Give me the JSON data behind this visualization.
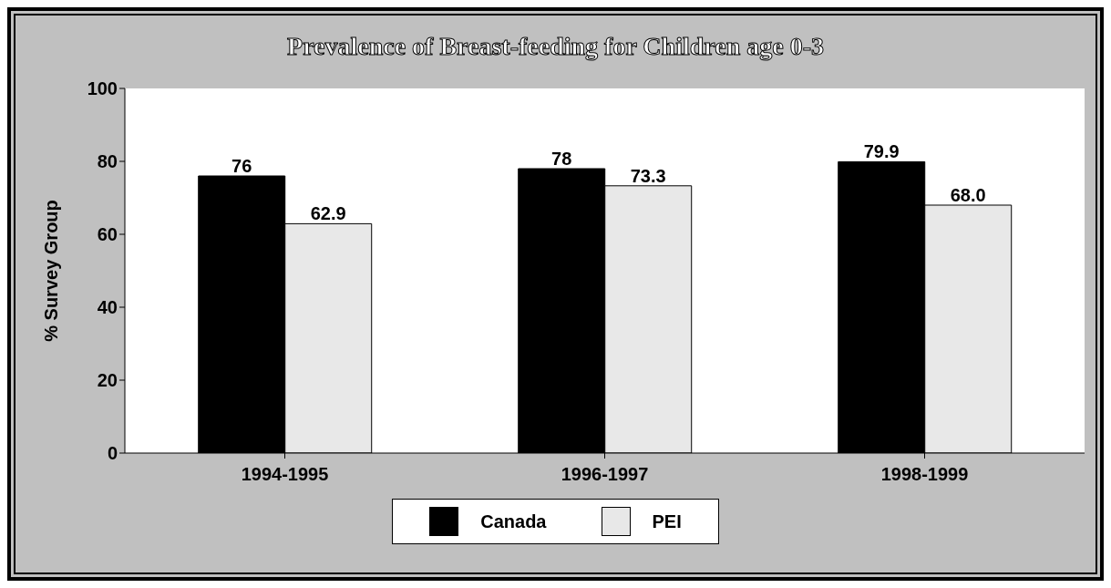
{
  "chart_data": {
    "type": "bar",
    "title": "Prevalence of Breast-feeding for Children age 0-3",
    "ylabel": "% Survey Group",
    "categories": [
      "1994-1995",
      "1996-1997",
      "1998-1999"
    ],
    "series": [
      {
        "name": "Canada",
        "color": "#000000",
        "values": [
          76,
          78,
          79.9
        ],
        "value_labels": [
          "76",
          "78",
          "79.9"
        ]
      },
      {
        "name": "PEI",
        "color": "#e8e8e8",
        "values": [
          62.9,
          73.3,
          68.0
        ],
        "value_labels": [
          "62.9",
          "73.3",
          "68.0"
        ]
      }
    ],
    "ylim": [
      0,
      100
    ],
    "yticks": [
      0,
      20,
      40,
      60,
      80,
      100
    ],
    "legend": "bottom"
  }
}
